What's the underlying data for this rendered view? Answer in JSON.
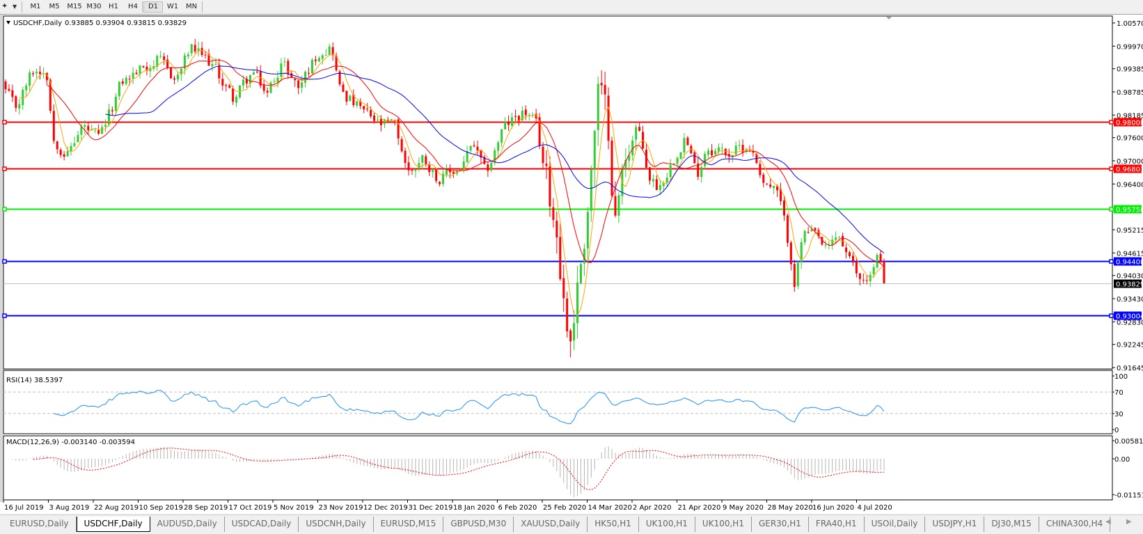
{
  "toolbar": {
    "timeframes": [
      "M1",
      "M5",
      "M15",
      "M30",
      "H1",
      "H4",
      "D1",
      "W1",
      "MN"
    ],
    "active": "D1"
  },
  "chart": {
    "symbol_title": "USDCHF,Daily",
    "ohlc": "0.93885 0.93904 0.93815 0.93829",
    "current_price": "0.93829",
    "colors": {
      "bull": "#32cd32",
      "bear": "#ff0000",
      "ma_fast": "#ffa500",
      "ma_mid": "#ff0000",
      "ma_slow": "#0000ff",
      "rsi": "#1e90ff",
      "macd_hist": "#b4b4b4",
      "macd_signal": "#ff0000"
    },
    "price_axis": [
      "1.00570",
      "0.99970",
      "0.99385",
      "0.98785",
      "0.98185",
      "0.97600",
      "0.97000",
      "0.96400",
      "0.95215",
      "0.94615",
      "0.94030",
      "0.93430",
      "0.92830",
      "0.92245",
      "0.91645"
    ],
    "horizontal_lines": [
      {
        "price": "0.98008",
        "color": "#ff0000"
      },
      {
        "price": "0.96803",
        "color": "#ff0000"
      },
      {
        "price": "0.95758",
        "color": "#00ee00"
      },
      {
        "price": "0.94408",
        "color": "#0000ff"
      },
      {
        "price": "0.93004",
        "color": "#0000ff"
      }
    ],
    "price_path": [
      [
        "2019-07-16",
        0.988
      ],
      [
        "2019-07-20",
        0.983
      ],
      [
        "2019-07-27",
        0.993
      ],
      [
        "2019-08-02",
        0.994
      ],
      [
        "2019-08-05",
        0.976
      ],
      [
        "2019-08-11",
        0.972
      ],
      [
        "2019-08-17",
        0.979
      ],
      [
        "2019-08-24",
        0.975
      ],
      [
        "2019-08-29",
        0.983
      ],
      [
        "2019-09-02",
        0.99
      ],
      [
        "2019-09-11",
        0.994
      ],
      [
        "2019-09-17",
        0.996
      ],
      [
        "2019-09-25",
        0.991
      ],
      [
        "2019-10-01",
        0.999
      ],
      [
        "2019-10-10",
        0.995
      ],
      [
        "2019-10-19",
        0.986
      ],
      [
        "2019-10-27",
        0.993
      ],
      [
        "2019-11-02",
        0.987
      ],
      [
        "2019-11-08",
        0.996
      ],
      [
        "2019-11-15",
        0.989
      ],
      [
        "2019-11-24",
        0.999
      ],
      [
        "2019-11-29",
        1.0
      ],
      [
        "2019-12-02",
        0.989
      ],
      [
        "2019-12-11",
        0.983
      ],
      [
        "2019-12-19",
        0.979
      ],
      [
        "2019-12-25",
        0.979
      ],
      [
        "2019-12-31",
        0.967
      ],
      [
        "2020-01-06",
        0.971
      ],
      [
        "2020-01-13",
        0.965
      ],
      [
        "2020-01-21",
        0.968
      ],
      [
        "2020-01-27",
        0.974
      ],
      [
        "2020-02-01",
        0.966
      ],
      [
        "2020-02-08",
        0.978
      ],
      [
        "2020-02-17",
        0.983
      ],
      [
        "2020-02-22",
        0.979
      ],
      [
        "2020-02-26",
        0.966
      ],
      [
        "2020-03-02",
        0.951
      ],
      [
        "2020-03-05",
        0.932
      ],
      [
        "2020-03-07",
        0.923
      ],
      [
        "2020-03-10",
        0.936
      ],
      [
        "2020-03-13",
        0.95
      ],
      [
        "2020-03-16",
        0.968
      ],
      [
        "2020-03-19",
        0.989
      ],
      [
        "2020-03-23",
        0.979
      ],
      [
        "2020-03-26",
        0.955
      ],
      [
        "2020-03-31",
        0.974
      ],
      [
        "2020-04-04",
        0.979
      ],
      [
        "2020-04-09",
        0.966
      ],
      [
        "2020-04-13",
        0.963
      ],
      [
        "2020-04-18",
        0.969
      ],
      [
        "2020-04-24",
        0.977
      ],
      [
        "2020-04-29",
        0.966
      ],
      [
        "2020-05-03",
        0.974
      ],
      [
        "2020-05-12",
        0.972
      ],
      [
        "2020-05-21",
        0.974
      ],
      [
        "2020-05-27",
        0.965
      ],
      [
        "2020-06-02",
        0.961
      ],
      [
        "2020-06-07",
        0.946
      ],
      [
        "2020-06-09",
        0.938
      ],
      [
        "2020-06-12",
        0.951
      ],
      [
        "2020-06-18",
        0.95
      ],
      [
        "2020-06-22",
        0.946
      ],
      [
        "2020-06-27",
        0.951
      ],
      [
        "2020-07-03",
        0.942
      ],
      [
        "2020-07-06",
        0.939
      ],
      [
        "2020-07-11",
        0.941
      ],
      [
        "2020-07-14",
        0.946
      ],
      [
        "2020-07-16",
        0.93829
      ]
    ]
  },
  "rsi": {
    "label": "RSI(14) 38.5397",
    "levels": [
      "100",
      "70",
      "30",
      "0"
    ]
  },
  "macd": {
    "label": "MACD(12,26,9) -0.003140 -0.003594",
    "levels": [
      "0.005818",
      "0.00",
      "-0.011514"
    ]
  },
  "date_axis": [
    "16 Jul 2019",
    "3 Aug 2019",
    "22 Aug 2019",
    "10 Sep 2019",
    "28 Sep 2019",
    "17 Oct 2019",
    "5 Nov 2019",
    "23 Nov 2019",
    "12 Dec 2019",
    "31 Dec 2019",
    "18 Jan 2020",
    "6 Feb 2020",
    "25 Feb 2020",
    "14 Mar 2020",
    "2 Apr 2020",
    "21 Apr 2020",
    "9 May 2020",
    "28 May 2020",
    "16 Jun 2020",
    "4 Jul 2020"
  ],
  "tabs": [
    {
      "label": "EURUSD,Daily",
      "active": false
    },
    {
      "label": "USDCHF,Daily",
      "active": true
    },
    {
      "label": "AUDUSD,Daily",
      "active": false
    },
    {
      "label": "USDCAD,Daily",
      "active": false
    },
    {
      "label": "USDCNH,Daily",
      "active": false
    },
    {
      "label": "EURUSD,M15",
      "active": false
    },
    {
      "label": "GBPUSD,M30",
      "active": false
    },
    {
      "label": "XAUUSD,Daily",
      "active": false
    },
    {
      "label": "HK50,H1",
      "active": false
    },
    {
      "label": "UK100,H1",
      "active": false
    },
    {
      "label": "UK100,H1",
      "active": false
    },
    {
      "label": "GER30,H1",
      "active": false
    },
    {
      "label": "FRA40,H1",
      "active": false
    },
    {
      "label": "USOil,Daily",
      "active": false
    },
    {
      "label": "USDJPY,H1",
      "active": false
    },
    {
      "label": "DJ30,M15",
      "active": false
    },
    {
      "label": "CHINA300,H4",
      "active": false
    }
  ]
}
